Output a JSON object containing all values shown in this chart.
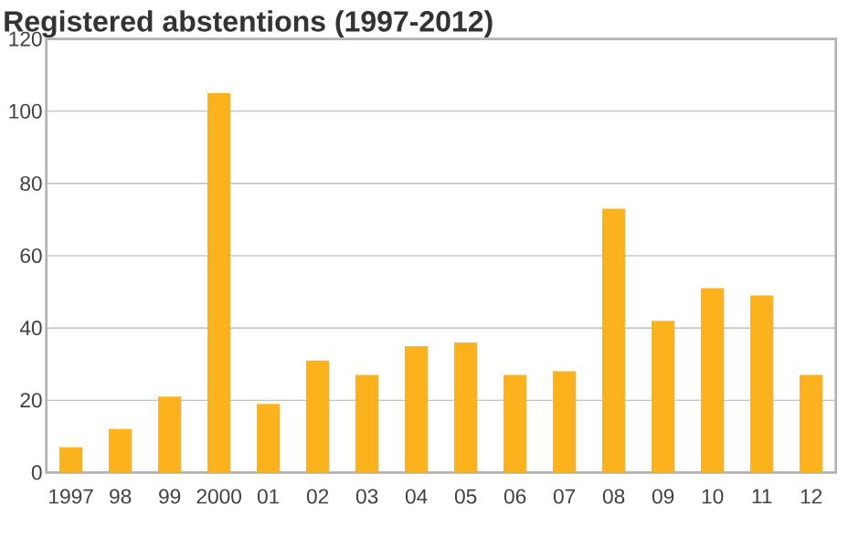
{
  "chart_data": {
    "type": "bar",
    "title": "Registered abstentions (1997-2012)",
    "categories": [
      "1997",
      "98",
      "99",
      "2000",
      "01",
      "02",
      "03",
      "04",
      "05",
      "06",
      "07",
      "08",
      "09",
      "10",
      "11",
      "12"
    ],
    "values": [
      7,
      12,
      21,
      105,
      19,
      31,
      27,
      35,
      36,
      27,
      28,
      73,
      42,
      51,
      49,
      27
    ],
    "color": "#fbb21d",
    "ylim": [
      0,
      120
    ],
    "yticks": [
      0,
      20,
      40,
      60,
      80,
      100,
      120
    ],
    "grid": "y"
  }
}
